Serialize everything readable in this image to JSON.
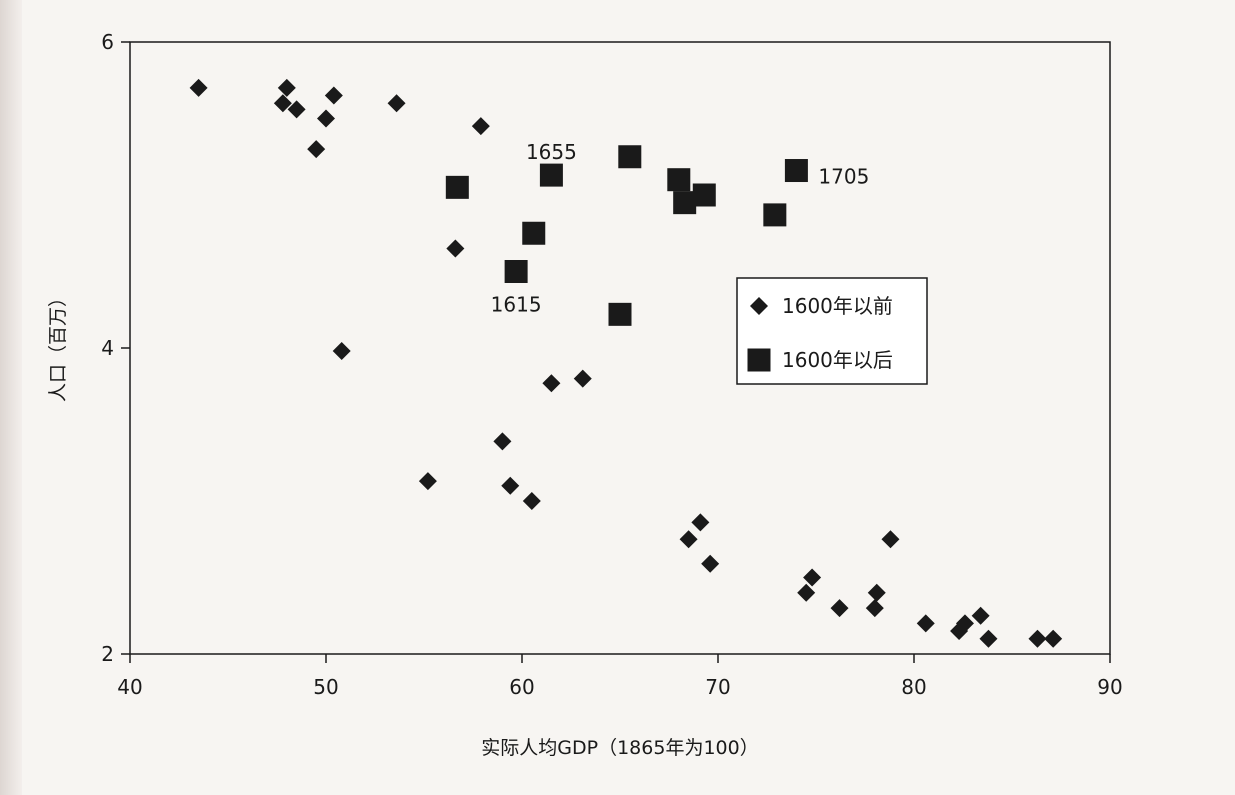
{
  "chart_data": {
    "type": "scatter",
    "title": "",
    "xlabel": "实际人均GDP（1865年为100）",
    "ylabel": "人口（百万）",
    "xlim": [
      40,
      90
    ],
    "ylim": [
      2,
      6
    ],
    "x_ticks": [
      "40",
      "50",
      "60",
      "70",
      "80",
      "90"
    ],
    "y_ticks": [
      "2",
      "4",
      "6"
    ],
    "grid": false,
    "legend_position": "right-center",
    "series": [
      {
        "name": "1600年以前",
        "marker": "diamond",
        "color": "#1a1a1a",
        "points": [
          [
            43.5,
            5.7
          ],
          [
            47.8,
            5.6
          ],
          [
            48.0,
            5.7
          ],
          [
            48.5,
            5.56
          ],
          [
            49.5,
            5.3
          ],
          [
            50.0,
            5.5
          ],
          [
            50.4,
            5.65
          ],
          [
            53.6,
            5.6
          ],
          [
            57.9,
            5.45
          ],
          [
            56.6,
            4.65
          ],
          [
            50.8,
            3.98
          ],
          [
            61.5,
            3.77
          ],
          [
            63.1,
            3.8
          ],
          [
            55.2,
            3.13
          ],
          [
            59.0,
            3.39
          ],
          [
            59.4,
            3.1
          ],
          [
            60.5,
            3.0
          ],
          [
            69.1,
            2.86
          ],
          [
            68.5,
            2.75
          ],
          [
            69.6,
            2.59
          ],
          [
            78.8,
            2.75
          ],
          [
            74.8,
            2.5
          ],
          [
            74.5,
            2.4
          ],
          [
            76.2,
            2.3
          ],
          [
            78.1,
            2.4
          ],
          [
            78.0,
            2.3
          ],
          [
            80.6,
            2.2
          ],
          [
            82.3,
            2.15
          ],
          [
            82.6,
            2.2
          ],
          [
            83.4,
            2.25
          ],
          [
            83.8,
            2.1
          ],
          [
            86.3,
            2.1
          ],
          [
            87.1,
            2.1
          ]
        ]
      },
      {
        "name": "1600年以后",
        "marker": "square",
        "color": "#1a1a1a",
        "points": [
          [
            56.7,
            5.05
          ],
          [
            61.5,
            5.13
          ],
          [
            65.5,
            5.25
          ],
          [
            68.0,
            5.1
          ],
          [
            68.3,
            4.95
          ],
          [
            69.3,
            5.0
          ],
          [
            72.9,
            4.87
          ],
          [
            74.0,
            5.16
          ],
          [
            60.6,
            4.75
          ],
          [
            59.7,
            4.5
          ],
          [
            65.0,
            4.22
          ]
        ]
      }
    ],
    "annotations": [
      {
        "text": "1655",
        "x": 61.5,
        "y": 5.13
      },
      {
        "text": "1705",
        "x": 74.0,
        "y": 5.16
      },
      {
        "text": "1615",
        "x": 59.7,
        "y": 4.5
      }
    ]
  }
}
